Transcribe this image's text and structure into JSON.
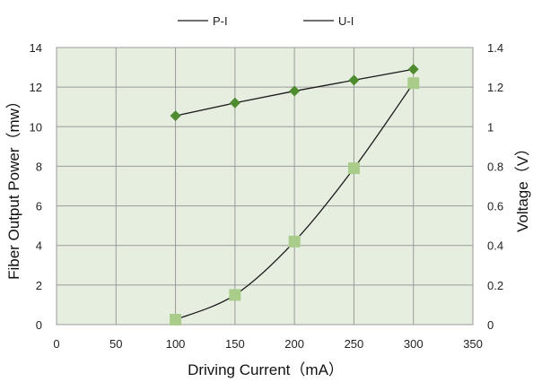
{
  "chart_data": {
    "type": "scatter",
    "xlabel": "Driving Current（mA）",
    "ylabel_left": "Fiber Output Power（mw）",
    "ylabel_right": "Voltage（V）",
    "xlim": [
      0,
      350
    ],
    "ylim_left": [
      0,
      14
    ],
    "ylim_right": [
      0,
      1.4
    ],
    "x_ticks": [
      "0",
      "50",
      "100",
      "150",
      "200",
      "250",
      "300",
      "350"
    ],
    "y_left_ticks": [
      "0",
      "2",
      "4",
      "6",
      "8",
      "10",
      "12",
      "14"
    ],
    "y_right_ticks": [
      "0",
      "0.2",
      "0.4",
      "0.6",
      "0.8",
      "1",
      "1.2",
      "1.4"
    ],
    "grid": true,
    "legend_position": "top",
    "plot_background": "#e6eee0",
    "series": [
      {
        "name": "P-I",
        "axis": "left",
        "marker": "square",
        "marker_color": "#a9cc8a",
        "line": "smooth",
        "x": [
          100,
          150,
          200,
          250,
          300
        ],
        "y": [
          0.25,
          1.5,
          4.2,
          7.9,
          12.2
        ]
      },
      {
        "name": "U-I",
        "axis": "right",
        "marker": "diamond",
        "marker_color": "#4e8c2f",
        "line": "straight",
        "x": [
          100,
          150,
          200,
          250,
          300
        ],
        "y": [
          1.055,
          1.12,
          1.18,
          1.235,
          1.29
        ]
      }
    ]
  }
}
